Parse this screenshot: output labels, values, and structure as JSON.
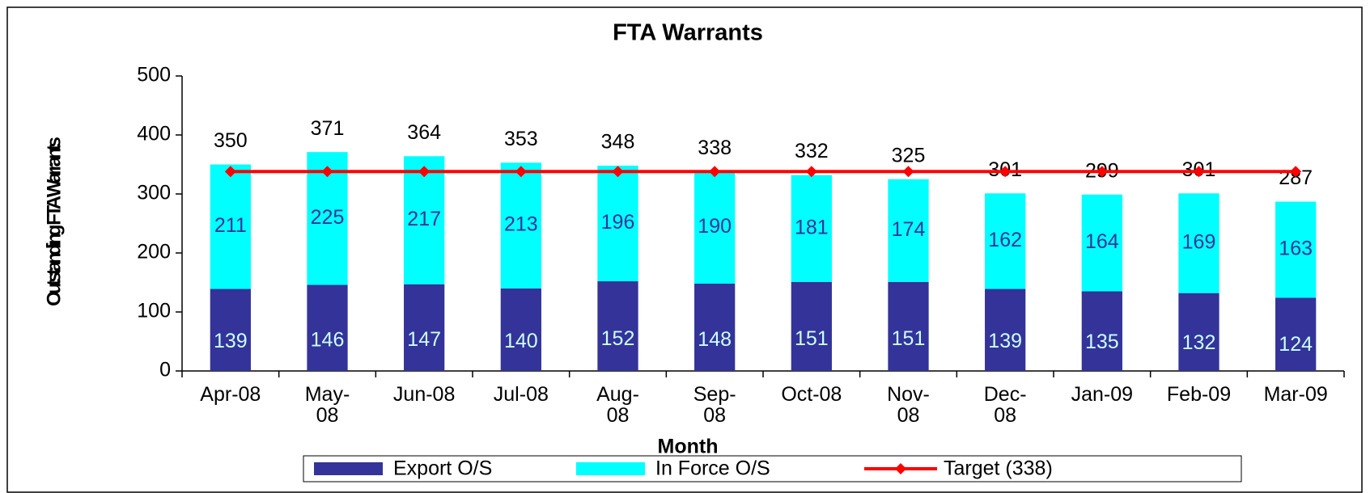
{
  "chart_data": {
    "type": "stacked_bar_line",
    "title": "FTA Warrants",
    "x_label": "Month",
    "y_label": "Outstanding FTA Warrants",
    "categories": [
      "Apr-08",
      "May-08",
      "Jun-08",
      "Jul-08",
      "Aug-08",
      "Sep-08",
      "Oct-08",
      "Nov-08",
      "Dec-08",
      "Jan-09",
      "Feb-09",
      "Mar-09"
    ],
    "series": [
      {
        "name": "Export O/S",
        "color": "#333399",
        "label_color": "#ccffff",
        "values": [
          139,
          146,
          147,
          140,
          152,
          148,
          151,
          151,
          139,
          135,
          132,
          124
        ]
      },
      {
        "name": "In Force O/S",
        "color": "#00ffff",
        "label_color": "#333399",
        "values": [
          211,
          225,
          217,
          213,
          196,
          190,
          181,
          174,
          162,
          164,
          169,
          163
        ]
      },
      {
        "name": "Target (338)",
        "type": "line",
        "color": "#ff0000",
        "values": [
          338,
          338,
          338,
          338,
          338,
          338,
          338,
          338,
          338,
          338,
          338,
          338
        ]
      }
    ],
    "totals": [
      350,
      371,
      364,
      353,
      348,
      338,
      332,
      325,
      301,
      299,
      301,
      287
    ],
    "ylim": [
      0,
      500
    ],
    "yticks": [
      0,
      100,
      200,
      300,
      400,
      500
    ],
    "grid": false,
    "legend": "bottom"
  }
}
